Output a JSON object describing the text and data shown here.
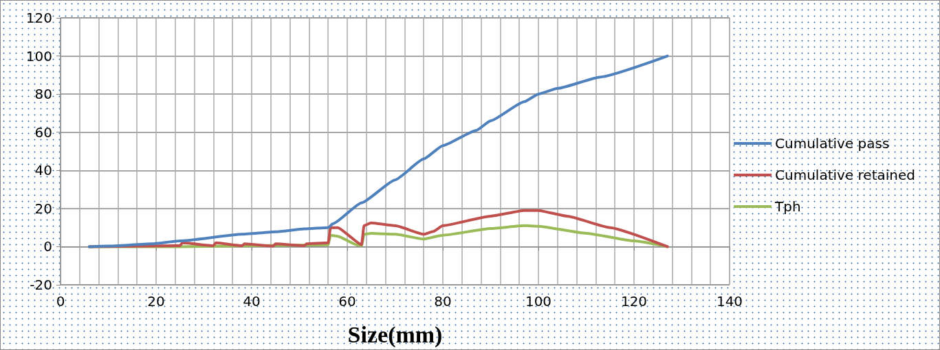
{
  "chart_data": {
    "type": "line",
    "xlabel": "Size(mm)",
    "xlim": [
      0,
      140
    ],
    "xticks": [
      0,
      20,
      40,
      60,
      80,
      100,
      120,
      140
    ],
    "ylim": [
      -20,
      120
    ],
    "yticks": [
      -20,
      0,
      20,
      40,
      60,
      80,
      100,
      120
    ],
    "grid": true,
    "legend": "right",
    "marker": "none",
    "line_style": "solid",
    "series": [
      {
        "name": "Cumulative pass",
        "color": "#4f81bd",
        "x": [
          6,
          10,
          19,
          25,
          38,
          45,
          51,
          56,
          57,
          63,
          70,
          76,
          80,
          87,
          90,
          97,
          100,
          104,
          113,
          127
        ],
        "values": [
          0,
          0.3,
          1.5,
          3,
          6.5,
          7.8,
          9.3,
          10,
          12,
          23,
          35,
          46,
          53,
          61,
          66,
          76,
          80,
          83,
          89,
          100
        ]
      },
      {
        "name": "Cumulative retained",
        "color": "#c0504d",
        "x": [
          6,
          25,
          25.5,
          32,
          32.5,
          38,
          38.5,
          44.5,
          45,
          51,
          51.5,
          56,
          56.5,
          58,
          63,
          63.5,
          65,
          70,
          76,
          78,
          80,
          90,
          97,
          100,
          106,
          115,
          127
        ],
        "values": [
          0,
          0.5,
          2,
          0.5,
          2,
          0.5,
          1.5,
          0.3,
          1.5,
          0.5,
          1.5,
          2,
          10,
          10,
          1,
          11,
          12.5,
          11,
          6.5,
          8,
          11,
          16,
          19,
          19,
          16,
          10,
          0
        ]
      },
      {
        "name": "Tph",
        "color": "#9bbb59",
        "x": [
          6,
          25,
          56,
          56.5,
          58,
          62,
          63,
          63.5,
          65,
          70,
          76,
          80,
          90,
          97,
          100,
          110,
          120,
          127
        ],
        "values": [
          0,
          0,
          1,
          6,
          5.5,
          1,
          0.5,
          6.5,
          7,
          6.5,
          4,
          6,
          9.5,
          11,
          10.7,
          7,
          3,
          0
        ]
      }
    ]
  }
}
